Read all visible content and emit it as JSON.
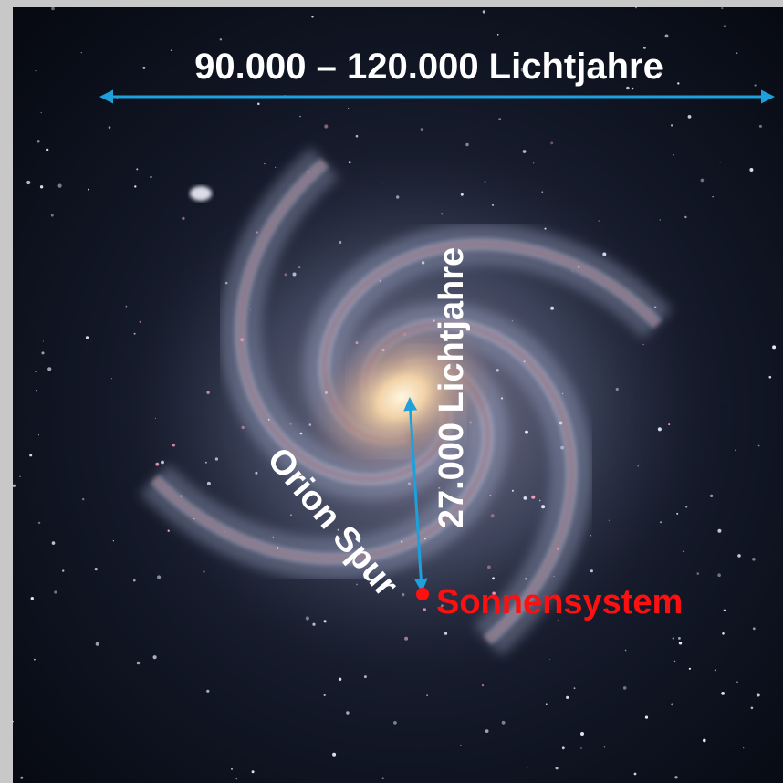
{
  "labels": {
    "width": "90.000 – 120.000 Lichtjahre",
    "distance": "27.000 Lichtjahre",
    "arm": "Orion Spur",
    "sun": "Sonnensystem"
  }
}
